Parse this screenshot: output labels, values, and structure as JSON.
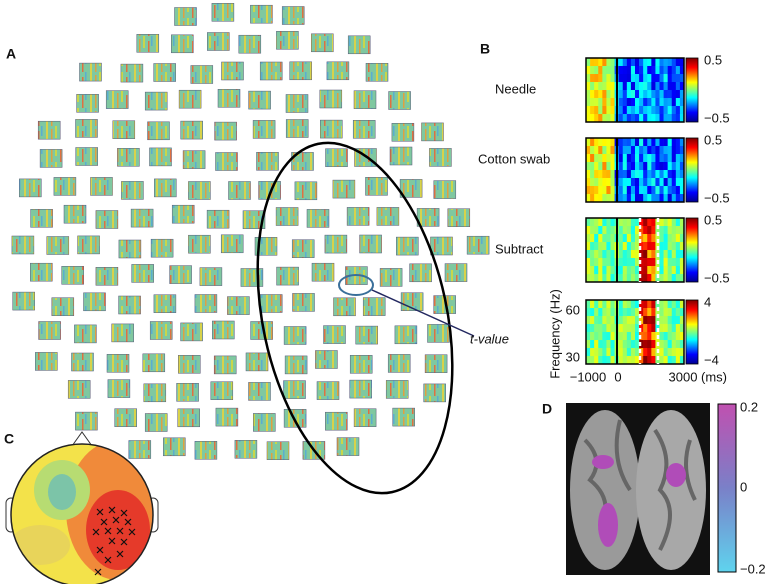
{
  "panels": {
    "a": {
      "label": "A",
      "annotation": "t-value"
    },
    "b": {
      "label": "B",
      "rows": [
        {
          "name": "Needle",
          "scale": [
            "0.5",
            "−0.5"
          ]
        },
        {
          "name": "Cotton swab",
          "scale": [
            "0.5",
            "−0.5"
          ]
        },
        {
          "name": "Subtract",
          "scale": [
            "0.5",
            "−0.5"
          ]
        },
        {
          "scale": [
            "4",
            "−4"
          ]
        }
      ],
      "y_axis": {
        "label": "Frequency (Hz)",
        "ticks": [
          "60",
          "30"
        ]
      },
      "x_axis": {
        "ticks": [
          "−1000",
          "0",
          "3000"
        ],
        "unit": "(ms)"
      }
    },
    "c": {
      "label": "C"
    },
    "d": {
      "label": "D",
      "scale": [
        "0.2",
        "0",
        "−0.2"
      ]
    }
  }
}
